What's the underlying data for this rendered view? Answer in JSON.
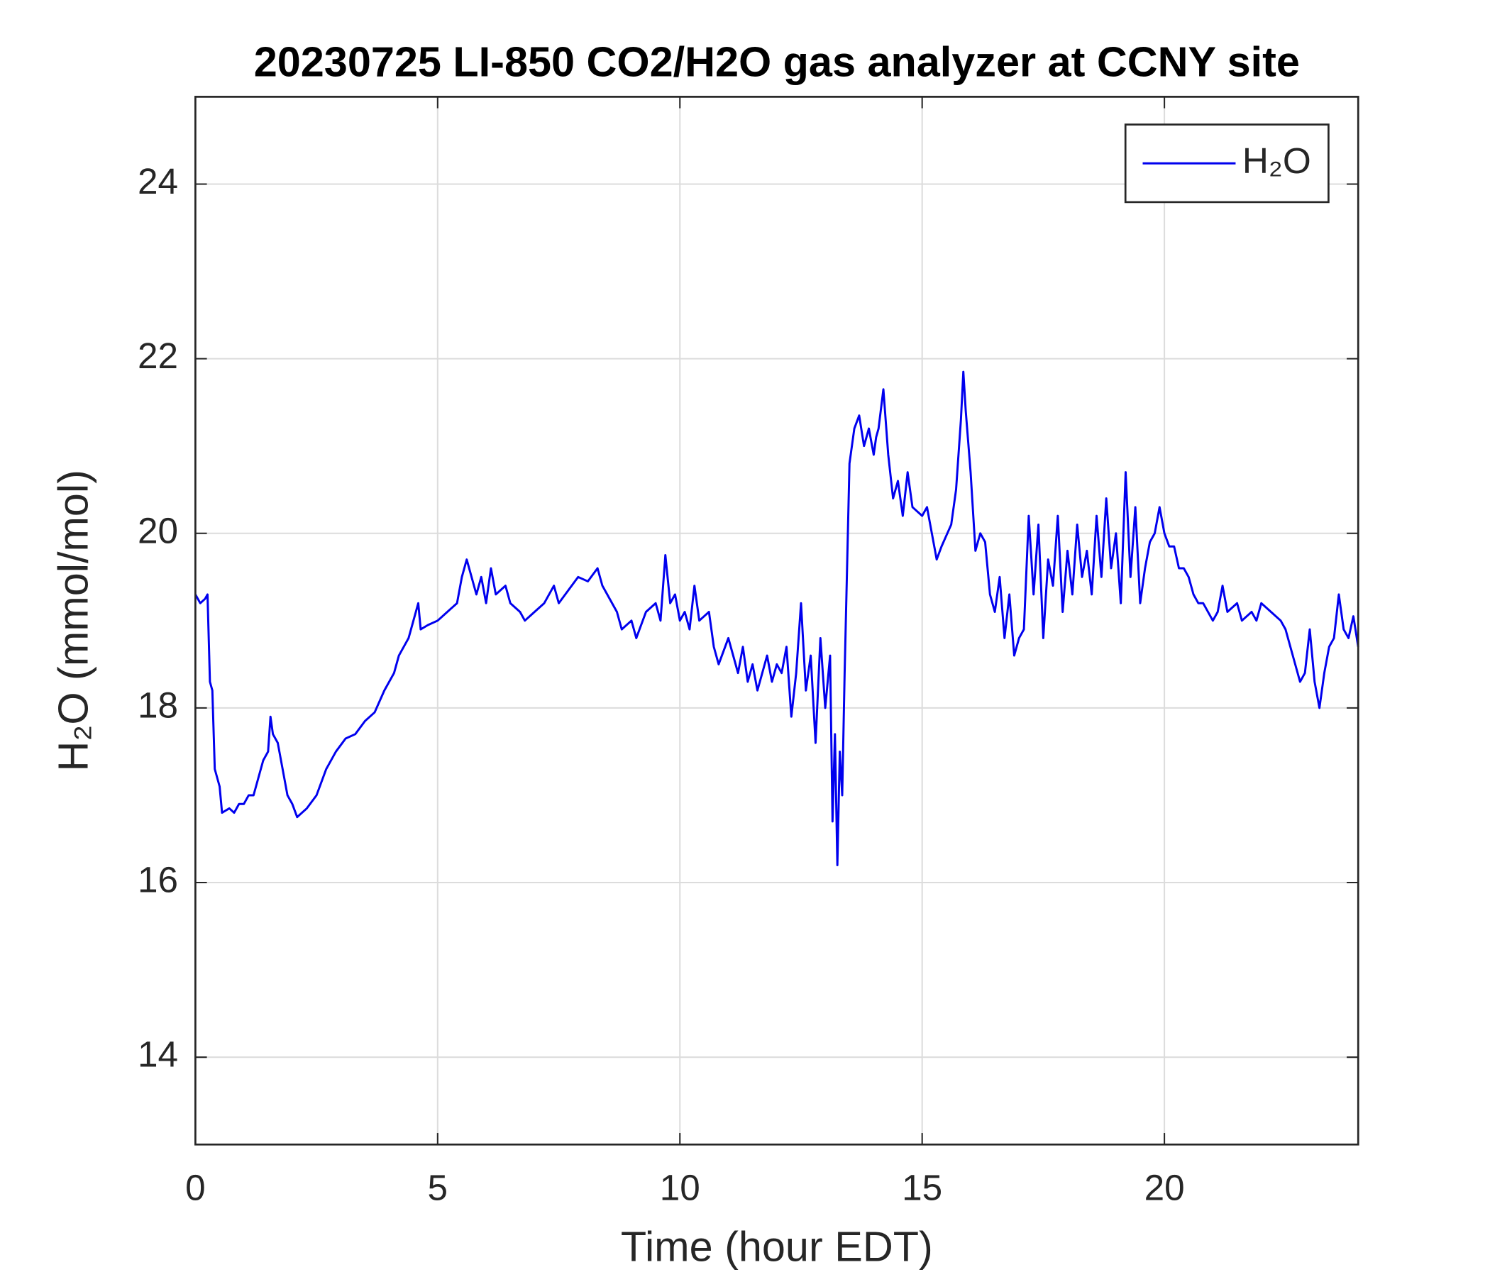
{
  "chart_data": {
    "type": "line",
    "title": "20230725 LI-850 CO2/H2O gas analyzer at CCNY site",
    "x_label": "Time (hour EDT)",
    "y_label": "H₂O (mmol/mol)",
    "xlim": [
      0,
      24
    ],
    "ylim": [
      13,
      25
    ],
    "xticks": [
      0,
      5,
      10,
      15,
      20
    ],
    "yticks": [
      14,
      16,
      18,
      20,
      22,
      24
    ],
    "grid": true,
    "legend": "northeast",
    "x": [
      0,
      0.1,
      0.2,
      0.25,
      0.3,
      0.35,
      0.4,
      0.5,
      0.55,
      0.7,
      0.8,
      0.9,
      1.0,
      1.1,
      1.2,
      1.3,
      1.4,
      1.5,
      1.55,
      1.6,
      1.7,
      1.8,
      1.9,
      2.0,
      2.1,
      2.2,
      2.3,
      2.5,
      2.7,
      2.9,
      3.1,
      3.3,
      3.5,
      3.7,
      3.9,
      4.1,
      4.2,
      4.4,
      4.5,
      4.6,
      4.65,
      4.8,
      5.0,
      5.2,
      5.4,
      5.5,
      5.6,
      5.7,
      5.8,
      5.9,
      6.0,
      6.1,
      6.2,
      6.4,
      6.5,
      6.7,
      6.8,
      7.0,
      7.2,
      7.4,
      7.5,
      7.7,
      7.9,
      8.1,
      8.3,
      8.4,
      8.5,
      8.7,
      8.8,
      9.0,
      9.1,
      9.3,
      9.5,
      9.6,
      9.7,
      9.8,
      9.9,
      10.0,
      10.1,
      10.2,
      10.3,
      10.4,
      10.6,
      10.7,
      10.8,
      11.0,
      11.1,
      11.2,
      11.3,
      11.4,
      11.5,
      11.6,
      11.8,
      11.9,
      12.0,
      12.1,
      12.2,
      12.3,
      12.4,
      12.5,
      12.6,
      12.7,
      12.8,
      12.9,
      13.0,
      13.1,
      13.15,
      13.2,
      13.25,
      13.3,
      13.35,
      13.4,
      13.5,
      13.6,
      13.7,
      13.8,
      13.9,
      14.0,
      14.05,
      14.1,
      14.2,
      14.3,
      14.4,
      14.5,
      14.6,
      14.7,
      14.8,
      15.0,
      15.1,
      15.2,
      15.3,
      15.4,
      15.6,
      15.7,
      15.8,
      15.85,
      15.9,
      16.0,
      16.1,
      16.2,
      16.3,
      16.4,
      16.5,
      16.6,
      16.7,
      16.8,
      16.9,
      17.0,
      17.1,
      17.2,
      17.3,
      17.4,
      17.5,
      17.6,
      17.7,
      17.8,
      17.9,
      18.0,
      18.1,
      18.2,
      18.3,
      18.4,
      18.5,
      18.6,
      18.7,
      18.8,
      18.9,
      19.0,
      19.1,
      19.2,
      19.3,
      19.4,
      19.5,
      19.6,
      19.7,
      19.8,
      19.9,
      20.0,
      20.1,
      20.2,
      20.3,
      20.4,
      20.5,
      20.6,
      20.7,
      20.8,
      21.0,
      21.1,
      21.2,
      21.3,
      21.5,
      21.6,
      21.8,
      21.9,
      22.0,
      22.2,
      22.4,
      22.5,
      22.7,
      22.8,
      22.9,
      23.0,
      23.1,
      23.2,
      23.3,
      23.4,
      23.5,
      23.6,
      23.7,
      23.8,
      23.9,
      24.0
    ],
    "series": [
      {
        "name": "H₂O",
        "color": "#0000ee",
        "values": [
          19.3,
          19.2,
          19.25,
          19.3,
          18.3,
          18.2,
          17.3,
          17.1,
          16.8,
          16.85,
          16.8,
          16.9,
          16.9,
          17.0,
          17.0,
          17.2,
          17.4,
          17.5,
          17.9,
          17.7,
          17.6,
          17.3,
          17.0,
          16.9,
          16.75,
          16.8,
          16.85,
          17.0,
          17.3,
          17.5,
          17.65,
          17.7,
          17.85,
          17.95,
          18.2,
          18.4,
          18.6,
          18.8,
          19.0,
          19.2,
          18.9,
          18.95,
          19.0,
          19.1,
          19.2,
          19.5,
          19.7,
          19.5,
          19.3,
          19.5,
          19.2,
          19.6,
          19.3,
          19.4,
          19.2,
          19.1,
          19.0,
          19.1,
          19.2,
          19.4,
          19.2,
          19.35,
          19.5,
          19.45,
          19.6,
          19.4,
          19.3,
          19.1,
          18.9,
          19.0,
          18.8,
          19.1,
          19.2,
          19.0,
          19.75,
          19.2,
          19.3,
          19.0,
          19.1,
          18.9,
          19.4,
          19.0,
          19.1,
          18.7,
          18.5,
          18.8,
          18.6,
          18.4,
          18.7,
          18.3,
          18.5,
          18.2,
          18.6,
          18.3,
          18.5,
          18.4,
          18.7,
          17.9,
          18.4,
          19.2,
          18.2,
          18.6,
          17.6,
          18.8,
          18.0,
          18.6,
          16.7,
          17.7,
          16.2,
          17.5,
          17.0,
          18.4,
          20.8,
          21.2,
          21.35,
          21.0,
          21.2,
          20.9,
          21.1,
          21.2,
          21.65,
          20.9,
          20.4,
          20.6,
          20.2,
          20.7,
          20.3,
          20.2,
          20.3,
          20.0,
          19.7,
          19.85,
          20.1,
          20.5,
          21.3,
          21.85,
          21.4,
          20.7,
          19.8,
          20.0,
          19.9,
          19.3,
          19.1,
          19.5,
          18.8,
          19.3,
          18.6,
          18.8,
          18.9,
          20.2,
          19.3,
          20.1,
          18.8,
          19.7,
          19.4,
          20.2,
          19.1,
          19.8,
          19.3,
          20.1,
          19.5,
          19.8,
          19.3,
          20.2,
          19.5,
          20.4,
          19.6,
          20.0,
          19.2,
          20.7,
          19.5,
          20.3,
          19.2,
          19.6,
          19.9,
          20.0,
          20.3,
          20.0,
          19.85,
          19.85,
          19.6,
          19.6,
          19.5,
          19.3,
          19.2,
          19.2,
          19.0,
          19.1,
          19.4,
          19.1,
          19.2,
          19.0,
          19.1,
          19.0,
          19.2,
          19.1,
          19.0,
          18.9,
          18.5,
          18.3,
          18.4,
          18.9,
          18.3,
          18.0,
          18.4,
          18.7,
          18.8,
          19.3,
          18.9,
          18.8,
          19.05,
          18.7
        ]
      }
    ]
  }
}
